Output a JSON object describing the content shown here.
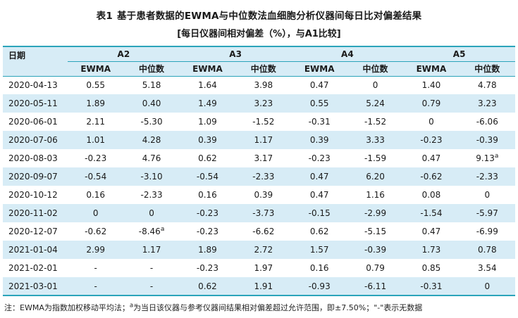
{
  "title": {
    "table_label": "表1",
    "main": "基于患者数据的EWMA与中位数法血细胞分析仪器间每日比对偏差结果",
    "subtitle": "[每日仪器间相对偏差（%），与A1比较]"
  },
  "table": {
    "date_header": "日期",
    "groups": [
      "A2",
      "A3",
      "A4",
      "A5"
    ],
    "sub_headers": [
      "EWMA",
      "中位数"
    ],
    "rows": [
      {
        "date": "2020-04-13",
        "values": [
          "0.55",
          "5.18",
          "1.64",
          "3.98",
          "0.47",
          "0",
          "1.40",
          "4.78"
        ]
      },
      {
        "date": "2020-05-11",
        "values": [
          "1.89",
          "0.40",
          "1.49",
          "3.23",
          "0.55",
          "5.24",
          "0.79",
          "3.23"
        ]
      },
      {
        "date": "2020-06-01",
        "values": [
          "2.11",
          "-5.30",
          "1.09",
          "-1.52",
          "-0.31",
          "-1.52",
          "0",
          "-6.06"
        ]
      },
      {
        "date": "2020-07-06",
        "values": [
          "1.01",
          "4.28",
          "0.39",
          "1.17",
          "0.39",
          "3.33",
          "-0.23",
          "-0.39"
        ]
      },
      {
        "date": "2020-08-03",
        "values": [
          "-0.23",
          "4.76",
          "0.62",
          "3.17",
          "-0.23",
          "-1.59",
          "0.47",
          "9.13^a"
        ]
      },
      {
        "date": "2020-09-07",
        "values": [
          "-0.54",
          "-3.10",
          "-0.54",
          "-2.33",
          "0.47",
          "6.20",
          "-0.62",
          "-2.33"
        ]
      },
      {
        "date": "2020-10-12",
        "values": [
          "0.16",
          "-2.33",
          "0.16",
          "0.39",
          "0.47",
          "1.16",
          "0.08",
          "0"
        ]
      },
      {
        "date": "2020-11-02",
        "values": [
          "0",
          "0",
          "-0.23",
          "-3.73",
          "-0.15",
          "-2.99",
          "-1.54",
          "-5.97"
        ]
      },
      {
        "date": "2020-12-07",
        "values": [
          "-0.62",
          "-8.46^a",
          "-0.23",
          "-6.62",
          "0.62",
          "-5.15",
          "0.47",
          "-6.99"
        ]
      },
      {
        "date": "2021-01-04",
        "values": [
          "2.99",
          "1.17",
          "1.89",
          "2.72",
          "1.57",
          "-0.39",
          "1.73",
          "0.78"
        ]
      },
      {
        "date": "2021-02-01",
        "values": [
          "-",
          "-",
          "-0.23",
          "1.97",
          "0.16",
          "0.79",
          "0.85",
          "3.54"
        ]
      },
      {
        "date": "2021-03-01",
        "values": [
          "-",
          "-",
          "0.62",
          "1.91",
          "-0.93",
          "-6.11",
          "-0.31",
          "0"
        ]
      }
    ]
  },
  "note": {
    "part1": "注：EWMA为指数加权移动平均法；",
    "sup": "a",
    "part2": "为当日该仪器与参考仪器间结果相对偏差超过允许范围，即±7.50%；\"-\"表示无数据"
  },
  "colors": {
    "accent_teal": "#2ba4ba",
    "stripe_blue": "#d7ecf6"
  }
}
